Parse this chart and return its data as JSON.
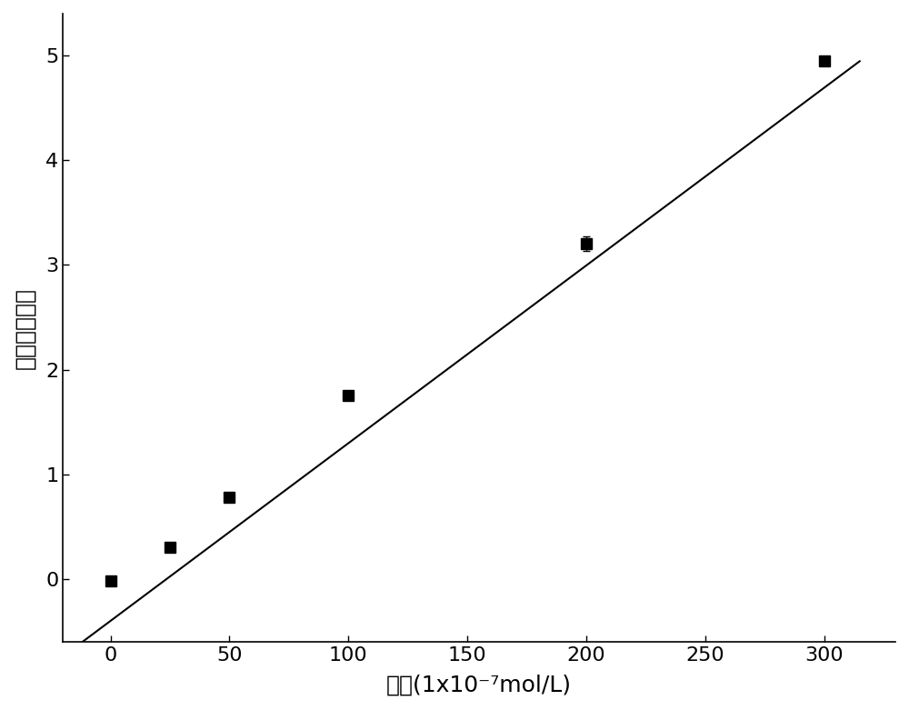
{
  "x_data": [
    0,
    25,
    50,
    100,
    200,
    300
  ],
  "y_data": [
    -0.02,
    0.3,
    0.78,
    1.75,
    3.2,
    4.95
  ],
  "y_err": [
    0.02,
    0.02,
    0.02,
    0.05,
    0.07,
    0.05
  ],
  "err_visible": [
    true,
    false,
    false,
    false,
    true,
    false
  ],
  "line_slope": 0.01697,
  "line_intercept": -0.4,
  "x_line_start": -15,
  "x_line_end": 315,
  "xlim": [
    -20,
    330
  ],
  "ylim": [
    -0.6,
    5.4
  ],
  "xticks": [
    0,
    50,
    100,
    150,
    200,
    250,
    300
  ],
  "yticks": [
    0,
    1,
    2,
    3,
    4,
    5
  ],
  "xlabel": "浓度(1x10⁻⁷mol/L)",
  "ylabel": "荧光强度差値",
  "marker_size": 8,
  "marker_color": "#000000",
  "line_color": "#000000",
  "line_width": 1.5,
  "background_color": "#ffffff",
  "spine_color": "#000000",
  "tick_fontsize": 16,
  "label_fontsize": 18
}
